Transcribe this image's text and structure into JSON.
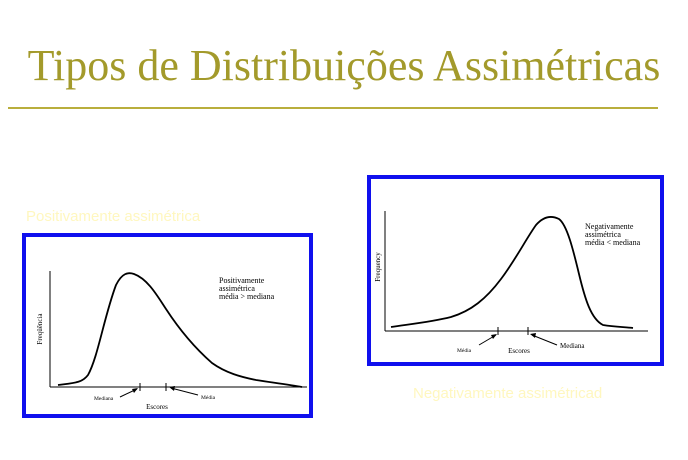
{
  "title": "Tipos de Distribuições Assimétricas",
  "colors": {
    "title": "#a39a2b",
    "rule": "#b9ae3c",
    "frame": "#1010ee",
    "caption": "#fff7bf"
  },
  "captions": {
    "positive": "Positivamente assimétrica",
    "negative": "Negativamente assimétricad"
  },
  "figures": {
    "positive": {
      "y_label": "Freqüência",
      "x_label": "Escores",
      "annotation": [
        "Positivamente",
        "assimétrica",
        "média > mediana"
      ],
      "markers": {
        "median": "Mediana",
        "mean": "Média"
      }
    },
    "negative": {
      "y_label": "Frequency",
      "x_label": "Escores",
      "annotation": [
        "Negativamente",
        "assimétrica",
        "média < mediana"
      ],
      "markers": {
        "mean": "Média",
        "median": "Mediana"
      }
    }
  }
}
